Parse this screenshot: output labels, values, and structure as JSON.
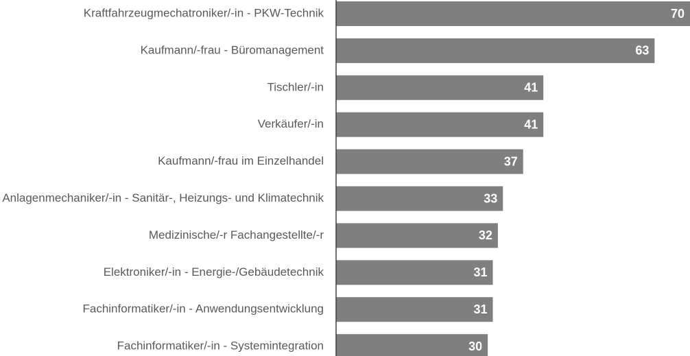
{
  "chart_data": {
    "type": "bar",
    "orientation": "horizontal",
    "categories": [
      "Kraftfahrzeugmechatroniker/-in - PKW-Technik",
      "Kaufmann/-frau - Büromanagement",
      "Tischler/-in",
      "Verkäufer/-in",
      "Kaufmann/-frau im Einzelhandel",
      "Anlagenmechaniker/-in - Sanitär-, Heizungs- und Klimatechnik",
      "Medizinische/-r Fachangestellte/-r",
      "Elektroniker/-in - Energie-/Gebäudetechnik",
      "Fachinformatiker/-in - Anwendungsentwicklung",
      "Fachinformatiker/-in - Systemintegration"
    ],
    "values": [
      70,
      63,
      41,
      41,
      37,
      33,
      32,
      31,
      31,
      30
    ],
    "color": "#7f7f7f",
    "xlim": [
      0,
      70
    ],
    "grid": false
  }
}
